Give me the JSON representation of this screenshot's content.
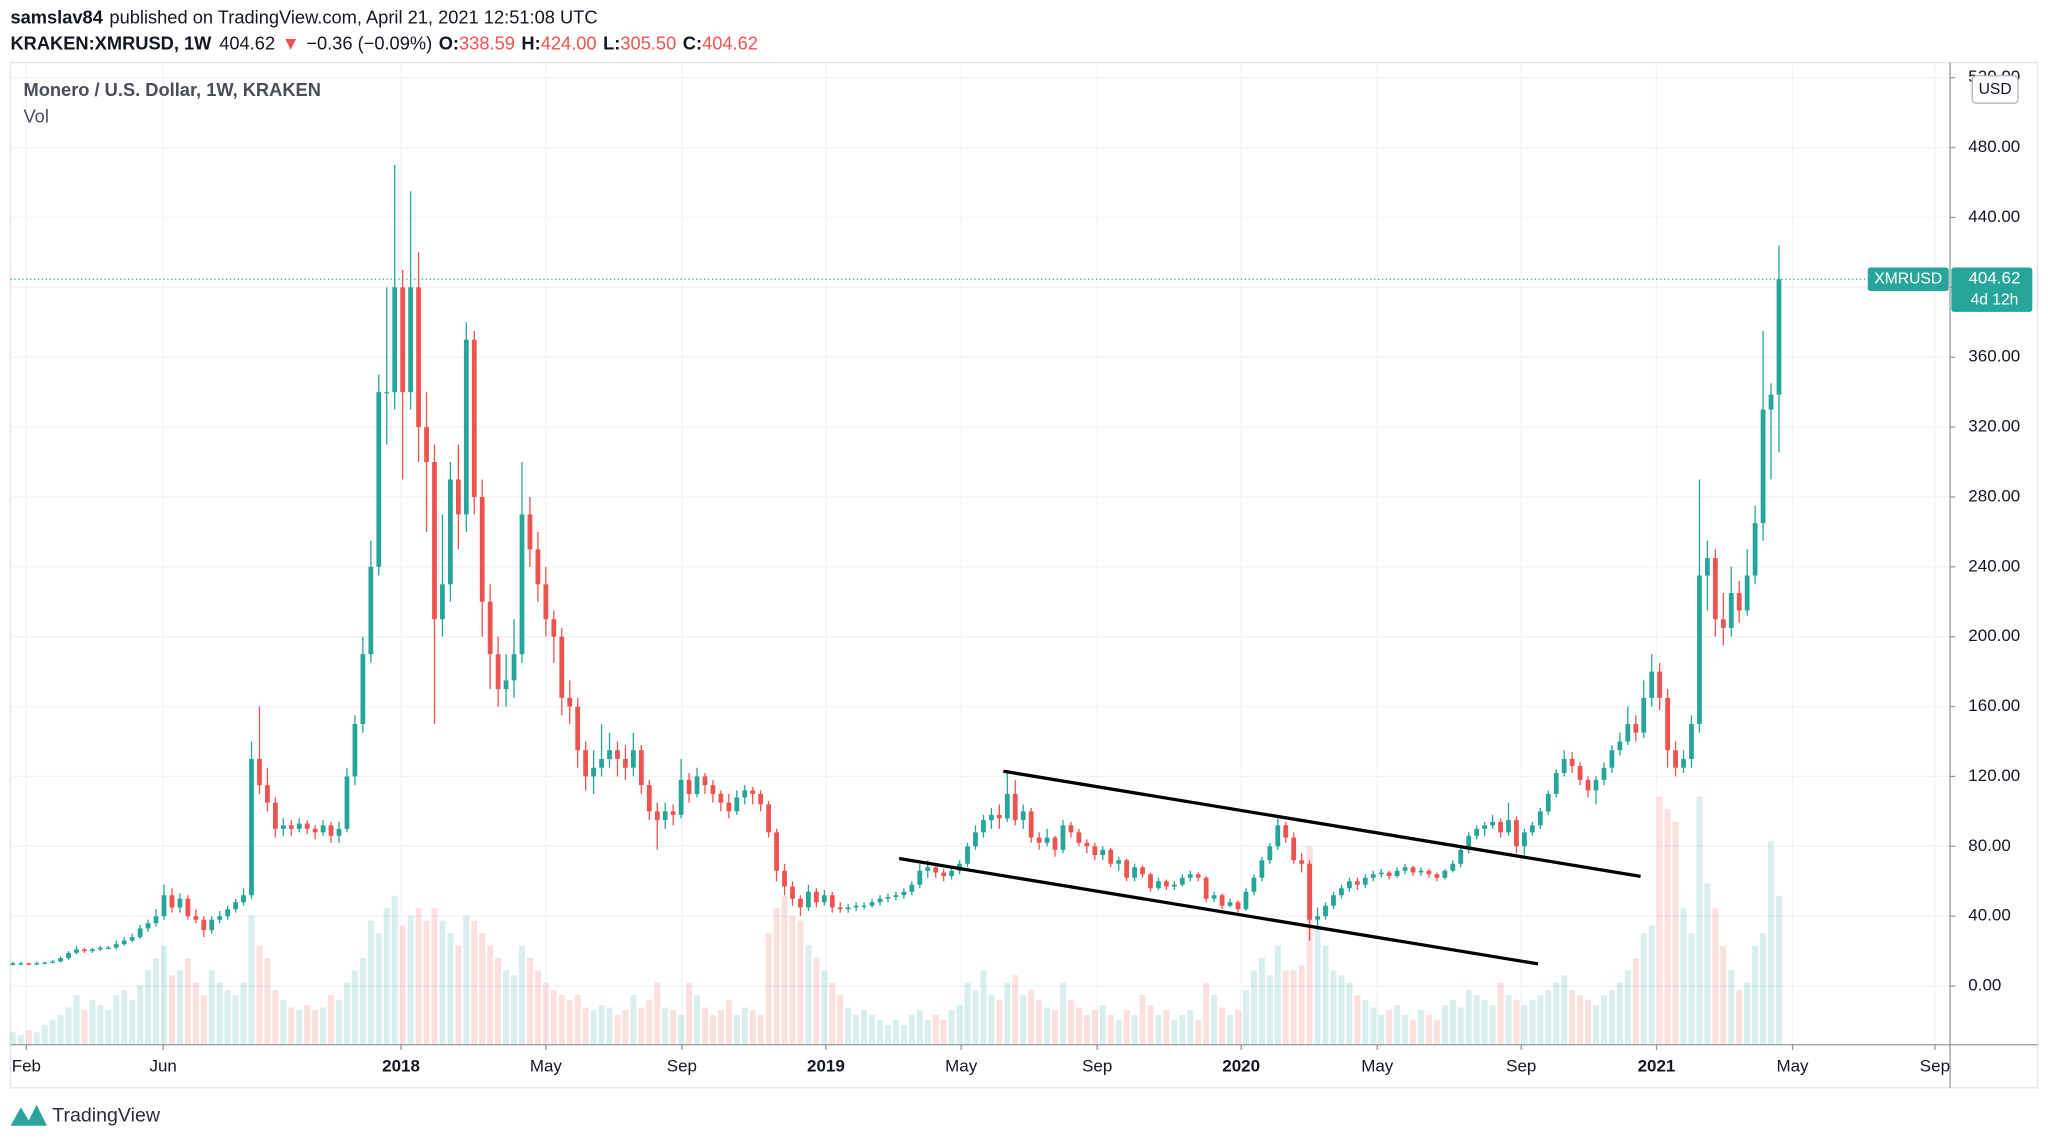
{
  "header": {
    "user": "samslav84",
    "published": "published on TradingView.com, April 21, 2021 12:51:08 UTC",
    "symbol": "KRAKEN:XMRUSD, 1W",
    "last": "404.62",
    "arrow": "▼",
    "change": "−0.36 (−0.09%)",
    "ohlc": [
      {
        "label": "O:",
        "value": "338.59"
      },
      {
        "label": "H:",
        "value": "424.00"
      },
      {
        "label": "L:",
        "value": "305.50"
      },
      {
        "label": "C:",
        "value": "404.62"
      }
    ]
  },
  "chart_data": {
    "type": "candlestick",
    "title": "Monero / U.S. Dollar, 1W, KRAKEN",
    "volume_label": "Vol",
    "currency": "USD",
    "price_label": "XMRUSD",
    "countdown": "4d 12h",
    "up_color": "#26a69a",
    "down_color": "#ef5350",
    "grid": true,
    "xlim": [
      -0.3,
      243.5
    ],
    "ylim": [
      -33.6,
      528.6
    ],
    "xticks": [
      {
        "value": 1.7,
        "label": "Feb"
      },
      {
        "value": 18.9,
        "label": "Jun"
      },
      {
        "value": 48.8,
        "label": "2018"
      },
      {
        "value": 67,
        "label": "May"
      },
      {
        "value": 84.1,
        "label": "Sep"
      },
      {
        "value": 102.2,
        "label": "2019"
      },
      {
        "value": 119.2,
        "label": "May"
      },
      {
        "value": 136.3,
        "label": "Sep"
      },
      {
        "value": 154.4,
        "label": "2020"
      },
      {
        "value": 171.5,
        "label": "May"
      },
      {
        "value": 189.6,
        "label": "Sep"
      },
      {
        "value": 206.6,
        "label": "2021"
      },
      {
        "value": 223.7,
        "label": "May"
      },
      {
        "value": 241.6,
        "label": "Sep"
      }
    ],
    "yticks": [
      {
        "value": 0,
        "label": "0.00"
      },
      {
        "value": 40,
        "label": "40.00"
      },
      {
        "value": 80,
        "label": "80.00"
      },
      {
        "value": 120,
        "label": "120.00"
      },
      {
        "value": 160,
        "label": "160.00"
      },
      {
        "value": 200,
        "label": "200.00"
      },
      {
        "value": 240,
        "label": "240.00"
      },
      {
        "value": 280,
        "label": "280.00"
      },
      {
        "value": 320,
        "label": "320.00"
      },
      {
        "value": 360,
        "label": "360.00"
      },
      {
        "value": 400,
        "label": "400.00"
      },
      {
        "value": 440,
        "label": "440.00"
      },
      {
        "value": 480,
        "label": "480.00"
      },
      {
        "value": 520,
        "label": "520.00"
      }
    ],
    "trendlines": [
      [
        [
          124.5,
          123
        ],
        [
          204.6,
          62.8
        ]
      ],
      [
        [
          111.4,
          73
        ],
        [
          191.7,
          12.7
        ]
      ]
    ],
    "candles": [
      [
        12,
        14,
        12,
        13
      ],
      [
        13,
        14,
        12,
        13
      ],
      [
        13,
        13.5,
        12,
        12.5
      ],
      [
        12.5,
        14,
        12,
        13
      ],
      [
        13,
        14,
        12.5,
        13.5
      ],
      [
        13.5,
        15,
        13,
        14
      ],
      [
        14,
        17,
        13.5,
        16
      ],
      [
        16,
        20,
        15,
        19
      ],
      [
        19,
        23,
        18,
        21
      ],
      [
        21,
        22,
        19,
        20
      ],
      [
        20,
        22,
        19,
        21
      ],
      [
        21,
        23,
        20,
        22
      ],
      [
        22,
        23,
        21,
        22
      ],
      [
        22,
        26,
        21,
        24
      ],
      [
        24,
        28,
        23,
        26
      ],
      [
        26,
        30,
        25,
        28
      ],
      [
        28,
        35,
        27,
        33
      ],
      [
        33,
        38,
        31,
        36
      ],
      [
        36,
        44,
        34,
        40
      ],
      [
        40,
        58,
        38,
        52
      ],
      [
        52,
        56,
        42,
        45
      ],
      [
        45,
        53,
        42,
        50
      ],
      [
        50,
        52,
        38,
        40
      ],
      [
        40,
        44,
        36,
        38
      ],
      [
        38,
        40,
        28,
        32
      ],
      [
        32,
        40,
        30,
        38
      ],
      [
        38,
        43,
        36,
        40
      ],
      [
        40,
        46,
        38,
        44
      ],
      [
        44,
        50,
        42,
        48
      ],
      [
        48,
        56,
        46,
        52
      ],
      [
        52,
        140,
        50,
        130
      ],
      [
        130,
        160,
        110,
        115
      ],
      [
        115,
        125,
        100,
        105
      ],
      [
        105,
        108,
        85,
        90
      ],
      [
        90,
        96,
        86,
        92
      ],
      [
        92,
        95,
        86,
        90
      ],
      [
        90,
        96,
        88,
        93
      ],
      [
        93,
        95,
        87,
        90
      ],
      [
        90,
        92,
        84,
        88
      ],
      [
        88,
        95,
        86,
        92
      ],
      [
        92,
        94,
        82,
        86
      ],
      [
        86,
        94,
        82,
        90
      ],
      [
        90,
        125,
        88,
        120
      ],
      [
        120,
        155,
        115,
        150
      ],
      [
        150,
        200,
        145,
        190
      ],
      [
        190,
        255,
        185,
        240
      ],
      [
        240,
        350,
        235,
        340
      ],
      [
        340,
        400,
        310,
        340
      ],
      [
        340,
        470,
        330,
        400
      ],
      [
        400,
        410,
        290,
        340
      ],
      [
        340,
        455,
        330,
        400
      ],
      [
        400,
        420,
        300,
        320
      ],
      [
        320,
        340,
        260,
        300
      ],
      [
        300,
        310,
        150,
        210
      ],
      [
        210,
        270,
        200,
        230
      ],
      [
        230,
        300,
        220,
        290
      ],
      [
        290,
        310,
        250,
        270
      ],
      [
        270,
        380,
        260,
        370
      ],
      [
        370,
        375,
        270,
        280
      ],
      [
        280,
        290,
        200,
        220
      ],
      [
        220,
        230,
        170,
        190
      ],
      [
        190,
        200,
        160,
        170
      ],
      [
        170,
        190,
        160,
        175
      ],
      [
        175,
        210,
        165,
        190
      ],
      [
        190,
        300,
        185,
        270
      ],
      [
        270,
        280,
        240,
        250
      ],
      [
        250,
        260,
        220,
        230
      ],
      [
        230,
        240,
        200,
        210
      ],
      [
        210,
        215,
        185,
        200
      ],
      [
        200,
        205,
        155,
        165
      ],
      [
        165,
        175,
        150,
        160
      ],
      [
        160,
        165,
        125,
        135
      ],
      [
        135,
        140,
        112,
        120
      ],
      [
        120,
        135,
        110,
        125
      ],
      [
        125,
        150,
        120,
        130
      ],
      [
        130,
        145,
        125,
        135
      ],
      [
        135,
        140,
        120,
        130
      ],
      [
        130,
        138,
        118,
        125
      ],
      [
        125,
        145,
        120,
        135
      ],
      [
        135,
        138,
        110,
        115
      ],
      [
        115,
        118,
        95,
        100
      ],
      [
        100,
        105,
        78,
        95
      ],
      [
        95,
        105,
        90,
        100
      ],
      [
        100,
        104,
        92,
        98
      ],
      [
        98,
        130,
        96,
        118
      ],
      [
        118,
        122,
        105,
        110
      ],
      [
        110,
        125,
        108,
        120
      ],
      [
        120,
        122,
        110,
        115
      ],
      [
        115,
        118,
        105,
        110
      ],
      [
        110,
        112,
        100,
        105
      ],
      [
        105,
        110,
        96,
        100
      ],
      [
        100,
        112,
        98,
        108
      ],
      [
        108,
        115,
        104,
        112
      ],
      [
        112,
        114,
        104,
        110
      ],
      [
        110,
        112,
        100,
        104
      ],
      [
        104,
        106,
        85,
        88
      ],
      [
        88,
        90,
        60,
        66
      ],
      [
        66,
        70,
        52,
        57
      ],
      [
        57,
        60,
        46,
        50
      ],
      [
        50,
        52,
        40,
        45
      ],
      [
        45,
        58,
        43,
        54
      ],
      [
        54,
        56,
        45,
        48
      ],
      [
        48,
        55,
        46,
        52
      ],
      [
        52,
        54,
        42,
        45
      ],
      [
        45,
        48,
        42,
        44
      ],
      [
        44,
        47,
        42,
        45
      ],
      [
        45,
        48,
        43,
        46
      ],
      [
        46,
        48,
        44,
        46
      ],
      [
        46,
        50,
        45,
        48
      ],
      [
        48,
        52,
        46,
        50
      ],
      [
        50,
        53,
        48,
        51
      ],
      [
        51,
        54,
        49,
        52
      ],
      [
        52,
        56,
        50,
        54
      ],
      [
        54,
        60,
        52,
        58
      ],
      [
        58,
        70,
        56,
        66
      ],
      [
        66,
        72,
        62,
        68
      ],
      [
        68,
        70,
        62,
        65
      ],
      [
        65,
        67,
        60,
        63
      ],
      [
        63,
        68,
        61,
        66
      ],
      [
        66,
        72,
        64,
        70
      ],
      [
        70,
        82,
        68,
        80
      ],
      [
        80,
        92,
        78,
        88
      ],
      [
        88,
        98,
        85,
        95
      ],
      [
        95,
        102,
        90,
        98
      ],
      [
        98,
        104,
        90,
        96
      ],
      [
        96,
        122,
        94,
        110
      ],
      [
        110,
        118,
        92,
        95
      ],
      [
        95,
        104,
        90,
        100
      ],
      [
        100,
        102,
        82,
        85
      ],
      [
        85,
        88,
        78,
        82
      ],
      [
        82,
        90,
        80,
        85
      ],
      [
        85,
        86,
        74,
        78
      ],
      [
        78,
        95,
        76,
        92
      ],
      [
        92,
        94,
        85,
        88
      ],
      [
        88,
        90,
        80,
        82
      ],
      [
        82,
        84,
        76,
        80
      ],
      [
        80,
        82,
        72,
        75
      ],
      [
        75,
        80,
        72,
        78
      ],
      [
        78,
        79,
        68,
        70
      ],
      [
        70,
        74,
        66,
        72
      ],
      [
        72,
        73,
        60,
        62
      ],
      [
        62,
        70,
        60,
        68
      ],
      [
        68,
        69,
        62,
        64
      ],
      [
        64,
        65,
        54,
        56
      ],
      [
        56,
        62,
        55,
        60
      ],
      [
        60,
        61,
        55,
        57
      ],
      [
        57,
        60,
        55,
        58
      ],
      [
        58,
        64,
        57,
        62
      ],
      [
        62,
        66,
        60,
        64
      ],
      [
        64,
        65,
        60,
        62
      ],
      [
        62,
        63,
        48,
        50
      ],
      [
        50,
        54,
        48,
        52
      ],
      [
        52,
        53,
        44,
        46
      ],
      [
        46,
        50,
        45,
        48
      ],
      [
        48,
        49,
        42,
        44
      ],
      [
        44,
        56,
        43,
        54
      ],
      [
        54,
        64,
        52,
        62
      ],
      [
        62,
        74,
        60,
        72
      ],
      [
        72,
        82,
        70,
        80
      ],
      [
        80,
        96,
        78,
        92
      ],
      [
        92,
        94,
        82,
        85
      ],
      [
        85,
        88,
        70,
        72
      ],
      [
        72,
        76,
        65,
        70
      ],
      [
        70,
        72,
        26,
        38
      ],
      [
        38,
        45,
        32,
        40
      ],
      [
        40,
        48,
        38,
        46
      ],
      [
        46,
        54,
        44,
        52
      ],
      [
        52,
        58,
        50,
        56
      ],
      [
        56,
        62,
        54,
        60
      ],
      [
        60,
        62,
        55,
        58
      ],
      [
        58,
        64,
        56,
        62
      ],
      [
        62,
        66,
        60,
        64
      ],
      [
        64,
        67,
        62,
        65
      ],
      [
        65,
        66,
        61,
        63
      ],
      [
        63,
        68,
        62,
        66
      ],
      [
        66,
        70,
        64,
        68
      ],
      [
        68,
        69,
        63,
        65
      ],
      [
        65,
        68,
        63,
        66
      ],
      [
        66,
        67,
        62,
        64
      ],
      [
        64,
        65,
        60,
        62
      ],
      [
        62,
        67,
        61,
        66
      ],
      [
        66,
        72,
        65,
        70
      ],
      [
        70,
        80,
        68,
        78
      ],
      [
        78,
        88,
        76,
        86
      ],
      [
        86,
        92,
        84,
        90
      ],
      [
        90,
        94,
        86,
        92
      ],
      [
        92,
        98,
        90,
        94
      ],
      [
        94,
        96,
        85,
        88
      ],
      [
        88,
        105,
        86,
        95
      ],
      [
        95,
        97,
        76,
        80
      ],
      [
        80,
        90,
        75,
        88
      ],
      [
        88,
        94,
        86,
        92
      ],
      [
        92,
        102,
        90,
        100
      ],
      [
        100,
        112,
        98,
        110
      ],
      [
        110,
        124,
        108,
        122
      ],
      [
        122,
        135,
        120,
        130
      ],
      [
        130,
        134,
        122,
        126
      ],
      [
        126,
        128,
        115,
        118
      ],
      [
        118,
        120,
        108,
        112
      ],
      [
        112,
        120,
        104,
        118
      ],
      [
        118,
        128,
        115,
        125
      ],
      [
        125,
        138,
        122,
        135
      ],
      [
        135,
        145,
        132,
        140
      ],
      [
        140,
        160,
        138,
        150
      ],
      [
        150,
        155,
        140,
        145
      ],
      [
        145,
        175,
        142,
        165
      ],
      [
        165,
        190,
        160,
        180
      ],
      [
        180,
        185,
        158,
        165
      ],
      [
        165,
        170,
        125,
        135
      ],
      [
        135,
        140,
        120,
        125
      ],
      [
        125,
        135,
        122,
        130
      ],
      [
        130,
        155,
        125,
        150
      ],
      [
        150,
        290,
        145,
        235
      ],
      [
        235,
        255,
        215,
        245
      ],
      [
        245,
        250,
        200,
        210
      ],
      [
        210,
        225,
        195,
        205
      ],
      [
        205,
        240,
        200,
        225
      ],
      [
        225,
        232,
        208,
        215
      ],
      [
        215,
        250,
        212,
        235
      ],
      [
        235,
        275,
        230,
        265
      ],
      [
        265,
        375,
        255,
        330
      ],
      [
        330,
        345,
        290,
        338.59
      ],
      [
        338.59,
        424,
        305.5,
        404.62
      ]
    ],
    "volume": [
      5,
      4,
      6,
      5,
      8,
      10,
      12,
      15,
      20,
      14,
      18,
      16,
      14,
      20,
      22,
      18,
      24,
      30,
      35,
      40,
      28,
      30,
      35,
      25,
      20,
      30,
      25,
      22,
      20,
      25,
      52,
      40,
      35,
      22,
      18,
      15,
      14,
      16,
      14,
      15,
      20,
      18,
      25,
      30,
      35,
      50,
      45,
      55,
      60,
      48,
      52,
      55,
      50,
      55,
      50,
      45,
      40,
      52,
      50,
      45,
      40,
      35,
      30,
      28,
      40,
      35,
      30,
      25,
      22,
      20,
      18,
      20,
      15,
      14,
      16,
      15,
      12,
      14,
      20,
      15,
      18,
      25,
      15,
      14,
      12,
      25,
      20,
      15,
      12,
      14,
      18,
      12,
      15,
      14,
      12,
      45,
      55,
      60,
      52,
      50,
      40,
      35,
      30,
      25,
      20,
      15,
      12,
      14,
      12,
      10,
      8,
      10,
      8,
      12,
      14,
      10,
      12,
      10,
      14,
      16,
      25,
      22,
      30,
      20,
      18,
      25,
      28,
      20,
      22,
      18,
      15,
      14,
      25,
      18,
      15,
      12,
      14,
      16,
      12,
      10,
      14,
      12,
      20,
      16,
      12,
      14,
      10,
      12,
      14,
      10,
      25,
      20,
      15,
      12,
      14,
      22,
      30,
      35,
      28,
      40,
      30,
      30,
      32,
      80,
      48,
      40,
      30,
      28,
      25,
      20,
      18,
      15,
      12,
      14,
      16,
      12,
      10,
      14,
      12,
      10,
      16,
      18,
      15,
      22,
      20,
      18,
      16,
      25,
      20,
      18,
      16,
      18,
      20,
      22,
      25,
      28,
      22,
      20,
      18,
      16,
      20,
      22,
      25,
      30,
      35,
      45,
      48,
      100,
      95,
      90,
      55,
      45,
      100,
      65,
      55,
      40,
      30,
      22,
      25,
      40,
      45,
      82,
      60
    ]
  },
  "footer": {
    "brand": "TradingView"
  }
}
